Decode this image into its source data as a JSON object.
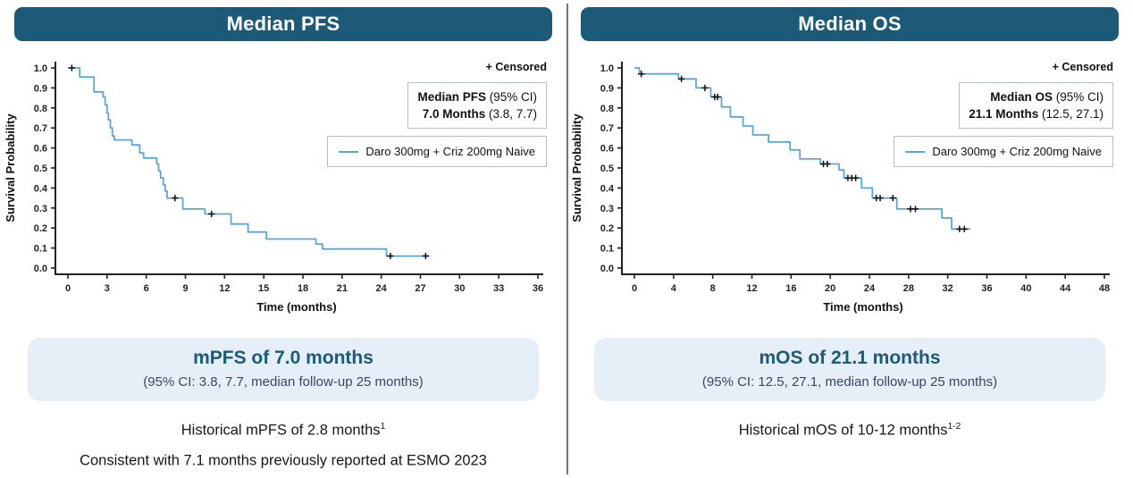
{
  "colors": {
    "header_bg": "#1d5a78",
    "curve": "#5aa7d6",
    "summary_box_bg": "#e6eef7",
    "summary_title": "#1d5a78",
    "divider": "#72737e"
  },
  "panels": [
    {
      "header": "Median PFS",
      "censored_label": "+ Censored",
      "stats": {
        "line1_bold": "Median PFS",
        "line1_rest": " (95% CI)",
        "line2_bold": "7.0 Months",
        "line2_rest": " (3.8, 7.7)"
      },
      "legend": {
        "label": "Daro 300mg + Criz 200mg Naive"
      },
      "summary": {
        "title": "mPFS of 7.0 months",
        "subtitle": "(95% CI: 3.8, 7.7, median follow-up 25 months)"
      },
      "notes": [
        {
          "text": "Historical mPFS of 2.8 months",
          "sup": "1"
        },
        {
          "text": "Consistent with 7.1 months previously reported at ESMO 2023",
          "sup": ""
        }
      ]
    },
    {
      "header": "Median OS",
      "censored_label": "+ Censored",
      "stats": {
        "line1_bold": "Median OS",
        "line1_rest": " (95% CI)",
        "line2_bold": "21.1 Months",
        "line2_rest": " (12.5, 27.1)"
      },
      "legend": {
        "label": "Daro 300mg + Criz 200mg Naive"
      },
      "summary": {
        "title": "mOS of 21.1 months",
        "subtitle": "(95% CI: 12.5, 27.1, median follow-up 25 months)"
      },
      "notes": [
        {
          "text": "Historical mOS of 10-12 months",
          "sup": "1-2"
        }
      ]
    }
  ],
  "chart_data": [
    {
      "type": "line",
      "subtype": "kaplan-meier-step",
      "title": "Median PFS",
      "xlabel": "Time (months)",
      "ylabel": "Survival Probability",
      "xlim": [
        0,
        36
      ],
      "ylim": [
        0,
        1.0
      ],
      "xticks": [
        0,
        3,
        6,
        9,
        12,
        15,
        18,
        21,
        24,
        27,
        30,
        33,
        36
      ],
      "yticks": [
        0.0,
        0.1,
        0.2,
        0.3,
        0.4,
        0.5,
        0.6,
        0.7,
        0.8,
        0.9,
        1.0
      ],
      "grid": false,
      "legend_position": "upper-right-inside",
      "median_months": 7.0,
      "ci_95": [
        3.8,
        7.7
      ],
      "series": [
        {
          "name": "Daro 300mg + Criz 200mg Naive",
          "color": "#5aa7d6",
          "points": [
            [
              0,
              1.0
            ],
            [
              0.9,
              0.955
            ],
            [
              2.0,
              0.88
            ],
            [
              2.7,
              0.855
            ],
            [
              2.85,
              0.815
            ],
            [
              3.0,
              0.775
            ],
            [
              3.1,
              0.74
            ],
            [
              3.25,
              0.7
            ],
            [
              3.4,
              0.66
            ],
            [
              3.55,
              0.64
            ],
            [
              4.9,
              0.615
            ],
            [
              5.5,
              0.575
            ],
            [
              5.8,
              0.55
            ],
            [
              6.8,
              0.52
            ],
            [
              6.95,
              0.485
            ],
            [
              7.1,
              0.45
            ],
            [
              7.3,
              0.415
            ],
            [
              7.45,
              0.385
            ],
            [
              7.6,
              0.35
            ],
            [
              8.8,
              0.295
            ],
            [
              10.5,
              0.27
            ],
            [
              12.5,
              0.22
            ],
            [
              13.8,
              0.18
            ],
            [
              15.2,
              0.145
            ],
            [
              19.0,
              0.12
            ],
            [
              19.5,
              0.095
            ],
            [
              24.4,
              0.06
            ],
            [
              27.7,
              0.06
            ]
          ]
        }
      ],
      "censor_marks": [
        [
          0.3,
          1.0
        ],
        [
          8.2,
          0.35
        ],
        [
          11.0,
          0.27
        ],
        [
          24.7,
          0.06
        ],
        [
          27.4,
          0.06
        ]
      ]
    },
    {
      "type": "line",
      "subtype": "kaplan-meier-step",
      "title": "Median OS",
      "xlabel": "Time (months)",
      "ylabel": "Survival Probability",
      "xlim": [
        0,
        48
      ],
      "ylim": [
        0,
        1.0
      ],
      "xticks": [
        0,
        4,
        8,
        12,
        16,
        20,
        24,
        28,
        32,
        36,
        40,
        44,
        48
      ],
      "yticks": [
        0.0,
        0.1,
        0.2,
        0.3,
        0.4,
        0.5,
        0.6,
        0.7,
        0.8,
        0.9,
        1.0
      ],
      "grid": false,
      "legend_position": "upper-right-inside",
      "median_months": 21.1,
      "ci_95": [
        12.5,
        27.1
      ],
      "series": [
        {
          "name": "Daro 300mg + Criz 200mg Naive",
          "color": "#5aa7d6",
          "points": [
            [
              0,
              1.0
            ],
            [
              0.5,
              0.97
            ],
            [
              4.5,
              0.945
            ],
            [
              6.3,
              0.9
            ],
            [
              7.8,
              0.855
            ],
            [
              8.9,
              0.805
            ],
            [
              9.8,
              0.755
            ],
            [
              11.1,
              0.71
            ],
            [
              12.1,
              0.665
            ],
            [
              13.7,
              0.63
            ],
            [
              15.9,
              0.59
            ],
            [
              16.9,
              0.545
            ],
            [
              19.0,
              0.52
            ],
            [
              20.9,
              0.49
            ],
            [
              21.4,
              0.45
            ],
            [
              23.2,
              0.4
            ],
            [
              24.3,
              0.35
            ],
            [
              26.8,
              0.295
            ],
            [
              31.4,
              0.25
            ],
            [
              32.4,
              0.195
            ],
            [
              34.3,
              0.195
            ]
          ]
        }
      ],
      "censor_marks": [
        [
          0.7,
          0.97
        ],
        [
          4.8,
          0.945
        ],
        [
          7.2,
          0.9
        ],
        [
          8.2,
          0.855
        ],
        [
          8.5,
          0.855
        ],
        [
          19.3,
          0.52
        ],
        [
          19.7,
          0.52
        ],
        [
          21.8,
          0.45
        ],
        [
          22.2,
          0.45
        ],
        [
          22.6,
          0.45
        ],
        [
          24.7,
          0.35
        ],
        [
          25.1,
          0.35
        ],
        [
          26.4,
          0.35
        ],
        [
          28.2,
          0.295
        ],
        [
          28.7,
          0.295
        ],
        [
          33.2,
          0.195
        ],
        [
          33.7,
          0.195
        ]
      ]
    }
  ]
}
